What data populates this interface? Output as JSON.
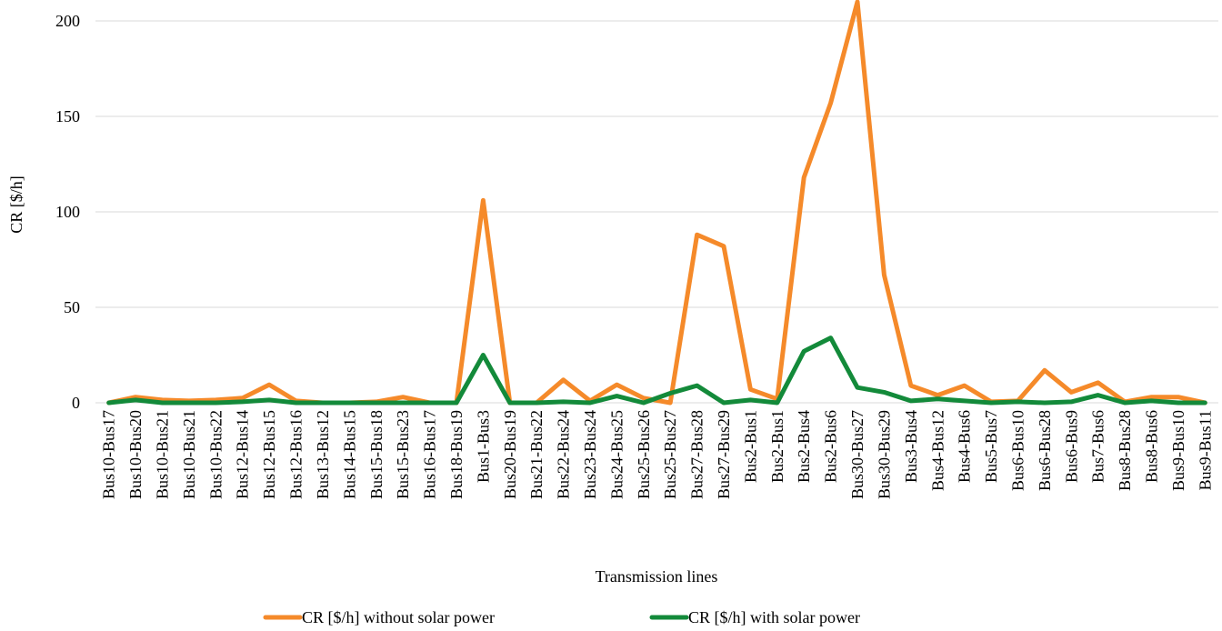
{
  "chart_data": {
    "type": "line",
    "xlabel": "Transmission lines",
    "ylabel": "CR [$/h]",
    "categories": [
      "Bus10-Bus17",
      "Bus10-Bus20",
      "Bus10-Bus21",
      "Bus10-Bus21",
      "Bus10-Bus22",
      "Bus12-Bus14",
      "Bus12-Bus15",
      "Bus12-Bus16",
      "Bus13-Bus12",
      "Bus14-Bus15",
      "Bus15-Bus18",
      "Bus15-Bus23",
      "Bus16-Bus17",
      "Bus18-Bus19",
      "Bus1-Bus3",
      "Bus20-Bus19",
      "Bus21-Bus22",
      "Bus22-Bus24",
      "Bus23-Bus24",
      "Bus24-Bus25",
      "Bus25-Bus26",
      "Bus25-Bus27",
      "Bus27-Bus28",
      "Bus27-Bus29",
      "Bus2-Bus1",
      "Bus2-Bus1",
      "Bus2-Bus4",
      "Bus2-Bus6",
      "Bus30-Bus27",
      "Bus30-Bus29",
      "Bus3-Bus4",
      "Bus4-Bus12",
      "Bus4-Bus6",
      "Bus5-Bus7",
      "Bus6-Bus10",
      "Bus6-Bus28",
      "Bus6-Bus9",
      "Bus7-Bus6",
      "Bus8-Bus28",
      "Bus8-Bus6",
      "Bus9-Bus10",
      "Bus9-Bus11"
    ],
    "series": [
      {
        "name": "CR [$/h] without solar power",
        "color": "#f58a2a",
        "values": [
          0,
          3,
          1.5,
          1,
          1.5,
          2.5,
          9.5,
          1,
          0,
          0,
          0.5,
          3,
          0,
          0,
          106,
          0,
          0,
          12,
          1,
          9.5,
          2.5,
          0,
          88,
          82,
          7,
          2,
          118,
          157,
          210,
          67,
          9,
          4,
          9,
          0.5,
          1,
          17,
          5.5,
          10.5,
          0.5,
          3,
          3,
          0
        ]
      },
      {
        "name": "CR [$/h] with solar power",
        "color": "#138a3a",
        "values": [
          0,
          1.5,
          0,
          0,
          0,
          0.5,
          1.5,
          0,
          0,
          0,
          0,
          0,
          0,
          0,
          25,
          0,
          0,
          0.5,
          0,
          3.5,
          0,
          5,
          9,
          0,
          1.5,
          0,
          27,
          34,
          8,
          5.5,
          1,
          2,
          1,
          0,
          0.5,
          0,
          0.5,
          4,
          0,
          1,
          0,
          0
        ]
      }
    ],
    "ylim": [
      0,
      210
    ],
    "yticks": [
      0,
      50,
      100,
      150,
      200
    ],
    "grid": true
  }
}
